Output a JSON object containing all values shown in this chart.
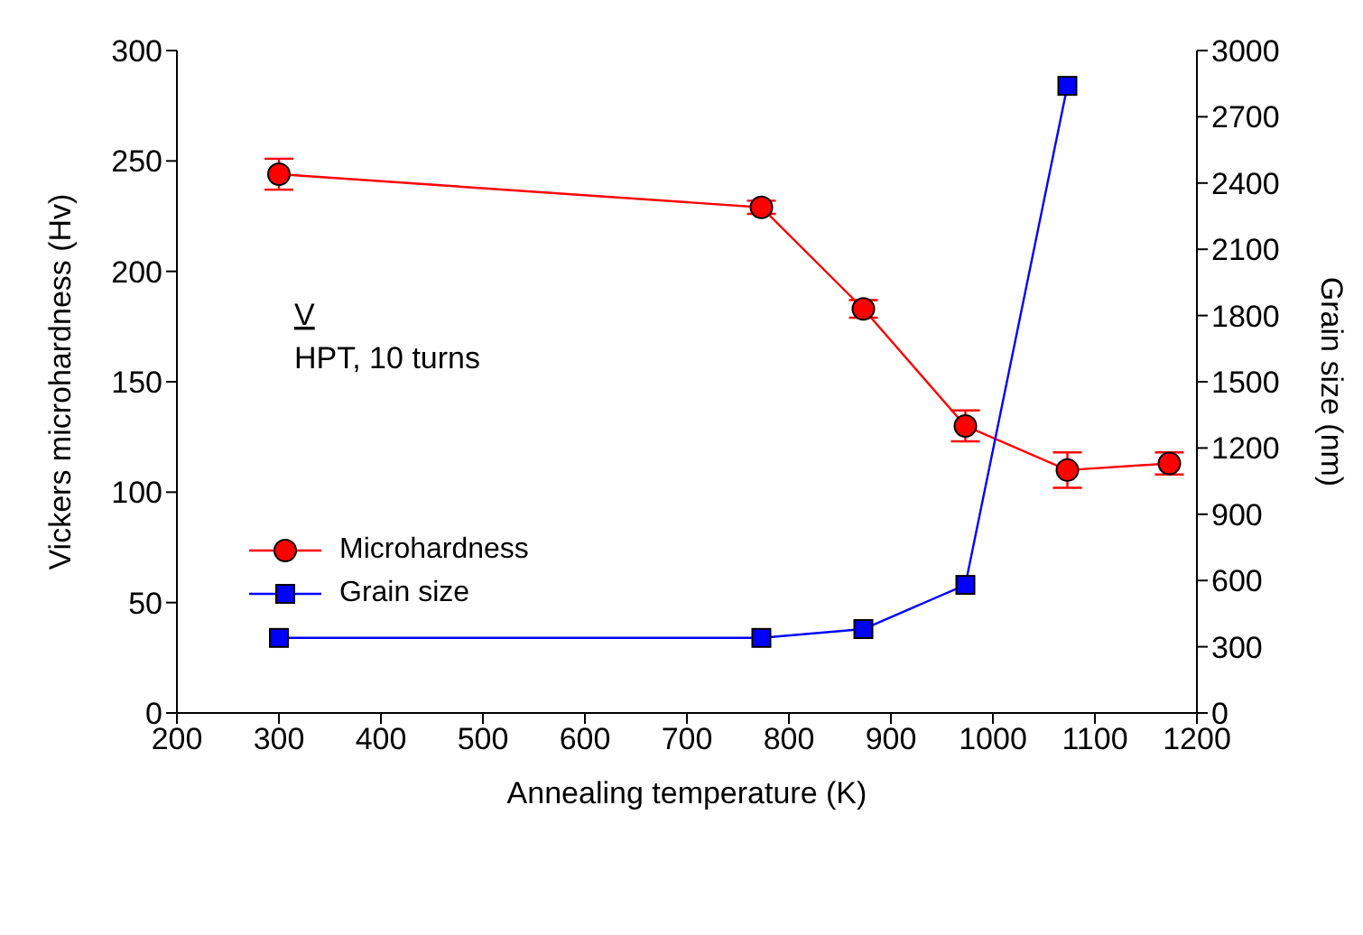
{
  "chart_data": {
    "type": "line",
    "xlabel": "Annealing temperature (K)",
    "ylabel": "Vickers microhardness (Hv)",
    "y2label": "Grain size (nm)",
    "annotations": [
      "V",
      "HPT, 10 turns"
    ],
    "x": [
      300,
      773,
      873,
      973,
      1073,
      1173
    ],
    "series": [
      {
        "name": "Microhardness",
        "color": "#ff0000",
        "marker": "circle",
        "values": [
          244,
          229,
          183,
          130,
          110,
          113
        ],
        "errors": [
          7,
          3,
          4,
          7,
          8,
          5
        ]
      },
      {
        "name": "Grain size",
        "color": "#0000ff",
        "marker": "square",
        "axis": "y2",
        "values": [
          340,
          340,
          380,
          580,
          2840,
          null
        ]
      }
    ],
    "xlim": [
      200,
      1200
    ],
    "xticks": [
      200,
      300,
      400,
      500,
      600,
      700,
      800,
      900,
      1000,
      1100,
      1200
    ],
    "ylim": [
      0,
      300
    ],
    "yticks": [
      0,
      50,
      100,
      150,
      200,
      250,
      300
    ],
    "y2lim": [
      0,
      3000
    ],
    "y2ticks": [
      0,
      300,
      600,
      900,
      1200,
      1500,
      1800,
      2100,
      2400,
      2700,
      3000
    ],
    "grid": false,
    "legend": "left",
    "line_style": "solid"
  }
}
